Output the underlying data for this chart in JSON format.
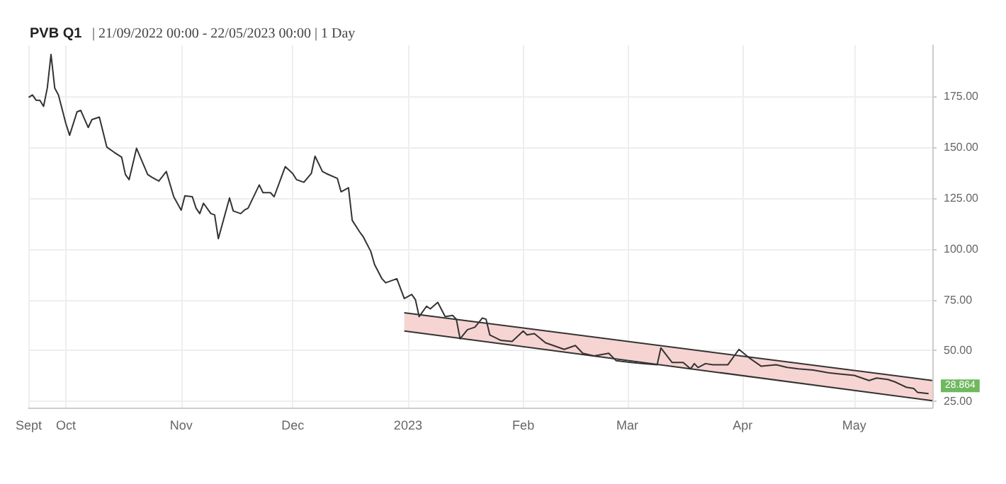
{
  "chart_data": {
    "type": "line",
    "title": "PVB Q1",
    "subtitle": "| 21/09/2022 00:00 - 22/05/2023 00:00 | 1 Day",
    "x": [
      "2022-09-21",
      "2022-09-22",
      "2022-09-23",
      "2022-09-24",
      "2022-09-25",
      "2022-09-26",
      "2022-09-27",
      "2022-09-28",
      "2022-09-29",
      "2022-10-01",
      "2022-10-02",
      "2022-10-04",
      "2022-10-05",
      "2022-10-07",
      "2022-10-08",
      "2022-10-10",
      "2022-10-12",
      "2022-10-14",
      "2022-10-16",
      "2022-10-17",
      "2022-10-18",
      "2022-10-20",
      "2022-10-23",
      "2022-10-24",
      "2022-10-26",
      "2022-10-28",
      "2022-10-30",
      "2022-11-01",
      "2022-11-02",
      "2022-11-04",
      "2022-11-05",
      "2022-11-06",
      "2022-11-07",
      "2022-11-09",
      "2022-11-10",
      "2022-11-11",
      "2022-11-14",
      "2022-11-15",
      "2022-11-17",
      "2022-11-18",
      "2022-11-19",
      "2022-11-22",
      "2022-11-23",
      "2022-11-25",
      "2022-11-26",
      "2022-11-29",
      "2022-12-01",
      "2022-12-02",
      "2022-12-04",
      "2022-12-06",
      "2022-12-07",
      "2022-12-09",
      "2022-12-10",
      "2022-12-13",
      "2022-12-14",
      "2022-12-16",
      "2022-12-17",
      "2022-12-19",
      "2022-12-20",
      "2022-12-22",
      "2022-12-23",
      "2022-12-25",
      "2022-12-26",
      "2022-12-29",
      "2022-12-31",
      "2023-01-02",
      "2023-01-03",
      "2023-01-04",
      "2023-01-06",
      "2023-01-07",
      "2023-01-09",
      "2023-01-11",
      "2023-01-13",
      "2023-01-14",
      "2023-01-15",
      "2023-01-17",
      "2023-01-19",
      "2023-01-21",
      "2023-01-22",
      "2023-01-23",
      "2023-01-26",
      "2023-01-29",
      "2023-02-01",
      "2023-02-02",
      "2023-02-04",
      "2023-02-07",
      "2023-02-10",
      "2023-02-12",
      "2023-02-15",
      "2023-02-17",
      "2023-02-20",
      "2023-02-24",
      "2023-02-26",
      "2023-03-02",
      "2023-03-05",
      "2023-03-09",
      "2023-03-10",
      "2023-03-13",
      "2023-03-16",
      "2023-03-18",
      "2023-03-19",
      "2023-03-20",
      "2023-03-22",
      "2023-03-24",
      "2023-03-28",
      "2023-03-31",
      "2023-04-03",
      "2023-04-06",
      "2023-04-10",
      "2023-04-13",
      "2023-04-16",
      "2023-04-20",
      "2023-04-24",
      "2023-04-27",
      "2023-05-01",
      "2023-05-05",
      "2023-05-07",
      "2023-05-10",
      "2023-05-12",
      "2023-05-15",
      "2023-05-17",
      "2023-05-18",
      "2023-05-21"
    ],
    "series": [
      {
        "color": "#333333",
        "values": [
          174.4,
          175.6,
          173,
          173,
          170,
          179,
          195.5,
          179,
          175.6,
          161.5,
          155.8,
          167.3,
          168,
          159.6,
          163.5,
          164.7,
          150,
          147.4,
          145,
          136.5,
          134,
          149.4,
          136.5,
          135.3,
          133.3,
          138,
          125.6,
          119,
          126,
          125.6,
          120,
          117.3,
          122.4,
          117.3,
          116.7,
          105,
          125,
          118.6,
          117.3,
          119,
          120,
          131.4,
          127.6,
          127.6,
          125.6,
          140.4,
          137,
          134,
          132.7,
          137,
          145.5,
          138,
          137,
          134.6,
          128,
          130,
          114,
          108.3,
          105.8,
          98.7,
          92.3,
          85.3,
          83.3,
          85.3,
          75.6,
          77.6,
          75,
          66.7,
          71.8,
          70.5,
          73.7,
          66.7,
          67.3,
          65.4,
          55.8,
          60.3,
          61.5,
          66,
          65.4,
          57.7,
          55,
          54.5,
          59.6,
          57.7,
          58.3,
          53.8,
          51.9,
          50.6,
          52.5,
          48.7,
          47.4,
          48.7,
          45,
          44.2,
          43.6,
          43,
          51.3,
          44.2,
          44.2,
          41,
          43.6,
          41.7,
          43.6,
          43,
          43,
          50.6,
          46.1,
          42.3,
          43,
          41.7,
          41,
          40.4,
          39.1,
          38.5,
          37.8,
          35.3,
          36.5,
          35.8,
          34.6,
          32,
          31.4,
          29.5,
          28.864
        ]
      },
      {
        "color": "#333333",
        "x": [
          "2022-12-31",
          "2023-05-22"
        ],
        "values": [
          68.6,
          35.3
        ],
        "lower": [
          59.6,
          25.4
        ],
        "upper": [
          68.6,
          35.3
        ]
      },
      {
        "color": "#333333",
        "x": [
          "2022-12-31",
          "2023-05-22"
        ],
        "values": [
          59.6,
          25.4
        ]
      }
    ],
    "annotations": [
      {
        "text": "28.864",
        "x": "2023-05-21",
        "y": 28.864
      }
    ],
    "xlim": [
      "2022-09-21",
      "2023-05-22"
    ],
    "xticks": [
      {
        "value": "2022-09-21",
        "label": "Sept"
      },
      {
        "value": "2022-10-01",
        "label": "Oct"
      },
      {
        "value": "2022-11-01",
        "label": "Nov"
      },
      {
        "value": "2022-12-01",
        "label": "Dec"
      },
      {
        "value": "2023-01-01",
        "label": "2023"
      },
      {
        "value": "2023-02-01",
        "label": "Feb"
      },
      {
        "value": "2023-03-01",
        "label": "Mar"
      },
      {
        "value": "2023-04-01",
        "label": "Apr"
      },
      {
        "value": "2023-05-01",
        "label": "May"
      }
    ],
    "ylim": [
      22,
      200
    ],
    "yticks": [
      {
        "value": 25,
        "label": "25.00"
      },
      {
        "value": 50,
        "label": "50.00"
      },
      {
        "value": 75,
        "label": "75.00"
      },
      {
        "value": 100,
        "label": "100.00"
      },
      {
        "value": 125,
        "label": "125.00"
      },
      {
        "value": 150,
        "label": "150.00"
      },
      {
        "value": 175,
        "label": "175.00"
      }
    ],
    "grid": true,
    "marker": "none"
  }
}
